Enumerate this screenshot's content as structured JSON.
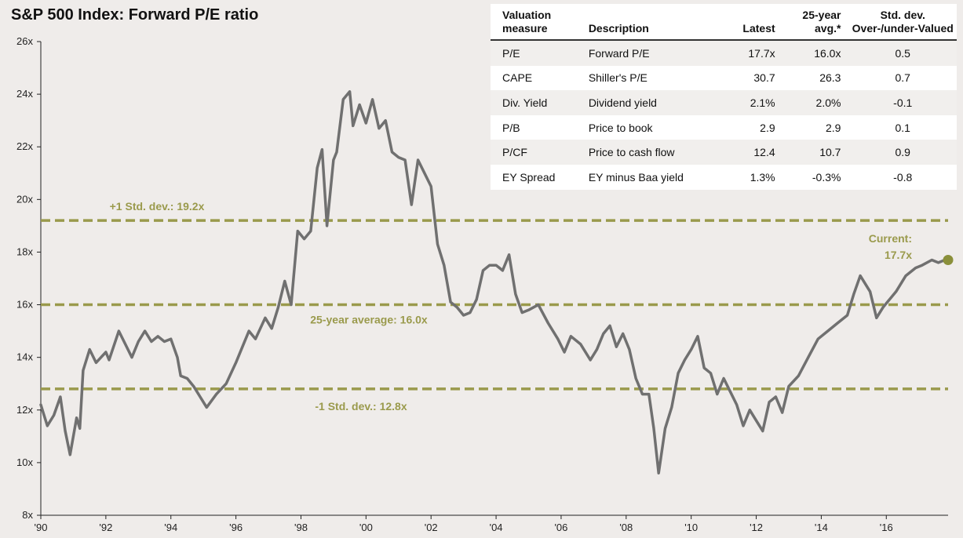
{
  "title": "S&P 500 Index: Forward P/E ratio",
  "colors": {
    "line": "#707070",
    "reference": "#9a9a4c",
    "current_point": "#8a8f3a",
    "background": "#efecea",
    "table_bg": "#ffffff",
    "table_shade": "#f1efed"
  },
  "table": {
    "headers": {
      "measure": "Valuation measure",
      "description": "Description",
      "latest": "Latest",
      "avg": "25-year avg.*",
      "stddev": "Std. dev. Over-/under-Valued"
    },
    "rows": [
      {
        "measure": "P/E",
        "description": "Forward P/E",
        "latest": "17.7x",
        "avg": "16.0x",
        "stddev": "0.5"
      },
      {
        "measure": "CAPE",
        "description": "Shiller's P/E",
        "latest": "30.7",
        "avg": "26.3",
        "stddev": "0.7"
      },
      {
        "measure": "Div. Yield",
        "description": "Dividend yield",
        "latest": "2.1%",
        "avg": "2.0%",
        "stddev": "-0.1"
      },
      {
        "measure": "P/B",
        "description": "Price to book",
        "latest": "2.9",
        "avg": "2.9",
        "stddev": "0.1"
      },
      {
        "measure": "P/CF",
        "description": "Price to cash flow",
        "latest": "12.4",
        "avg": "10.7",
        "stddev": "0.9"
      },
      {
        "measure": "EY Spread",
        "description": "EY minus Baa yield",
        "latest": "1.3%",
        "avg": "-0.3%",
        "stddev": "-0.8"
      }
    ]
  },
  "chart_data": {
    "type": "line",
    "title": "S&P 500 Index: Forward P/E ratio",
    "xlabel": "",
    "ylabel": "",
    "xlim": [
      1990,
      2017.9
    ],
    "ylim": [
      8,
      26
    ],
    "grid": false,
    "y_ticks": [
      8,
      10,
      12,
      14,
      16,
      18,
      20,
      22,
      24,
      26
    ],
    "y_tick_labels": [
      "8x",
      "10x",
      "12x",
      "14x",
      "16x",
      "18x",
      "20x",
      "22x",
      "24x",
      "26x"
    ],
    "x_ticks": [
      1990,
      1992,
      1994,
      1996,
      1998,
      2000,
      2002,
      2004,
      2006,
      2008,
      2010,
      2012,
      2014,
      2016
    ],
    "x_tick_labels": [
      "'90",
      "'92",
      "'94",
      "'96",
      "'98",
      "'00",
      "'02",
      "'04",
      "'06",
      "'08",
      "'10",
      "'12",
      "'14",
      "'16"
    ],
    "series": [
      {
        "x": [
          1990.0,
          1990.2,
          1990.4,
          1990.6,
          1990.75,
          1990.9,
          1991.1,
          1991.2,
          1991.3,
          1991.5,
          1991.7,
          1992.0,
          1992.1,
          1992.4,
          1992.6,
          1992.8,
          1993.0,
          1993.2,
          1993.4,
          1993.6,
          1993.8,
          1994.0,
          1994.2,
          1994.3,
          1994.5,
          1994.7,
          1994.9,
          1995.1,
          1995.4,
          1995.7,
          1996.0,
          1996.2,
          1996.4,
          1996.6,
          1996.9,
          1997.1,
          1997.3,
          1997.5,
          1997.7,
          1997.9,
          1998.1,
          1998.3,
          1998.5,
          1998.65,
          1998.8,
          1999.0,
          1999.1,
          1999.3,
          1999.5,
          1999.6,
          1999.8,
          2000.0,
          2000.2,
          2000.4,
          2000.6,
          2000.8,
          2001.0,
          2001.2,
          2001.4,
          2001.6,
          2001.8,
          2002.0,
          2002.2,
          2002.4,
          2002.6,
          2002.8,
          2003.0,
          2003.2,
          2003.4,
          2003.6,
          2003.8,
          2004.0,
          2004.2,
          2004.4,
          2004.6,
          2004.8,
          2005.0,
          2005.3,
          2005.6,
          2005.9,
          2006.1,
          2006.3,
          2006.6,
          2006.9,
          2007.1,
          2007.3,
          2007.5,
          2007.7,
          2007.9,
          2008.1,
          2008.3,
          2008.5,
          2008.7,
          2008.85,
          2009.0,
          2009.2,
          2009.4,
          2009.6,
          2009.8,
          2010.0,
          2010.2,
          2010.4,
          2010.6,
          2010.8,
          2011.0,
          2011.2,
          2011.4,
          2011.6,
          2011.8,
          2012.0,
          2012.2,
          2012.4,
          2012.6,
          2012.8,
          2013.0,
          2013.3,
          2013.6,
          2013.9,
          2014.2,
          2014.5,
          2014.8,
          2015.0,
          2015.2,
          2015.5,
          2015.7,
          2015.9,
          2016.1,
          2016.3,
          2016.6,
          2016.9,
          2017.1,
          2017.4,
          2017.6,
          2017.8
        ],
        "y": [
          12.2,
          11.4,
          11.8,
          12.5,
          11.2,
          10.3,
          11.7,
          11.3,
          13.5,
          14.3,
          13.8,
          14.2,
          13.9,
          15.0,
          14.5,
          14.0,
          14.6,
          15.0,
          14.6,
          14.8,
          14.6,
          14.7,
          14.0,
          13.3,
          13.2,
          12.9,
          12.5,
          12.1,
          12.6,
          13.0,
          13.8,
          14.4,
          15.0,
          14.7,
          15.5,
          15.1,
          15.9,
          16.9,
          16.0,
          18.8,
          18.5,
          18.8,
          21.2,
          21.9,
          19.0,
          21.5,
          21.8,
          23.8,
          24.1,
          22.8,
          23.6,
          22.9,
          23.8,
          22.7,
          23.0,
          21.8,
          21.6,
          21.5,
          19.8,
          21.5,
          21.0,
          20.5,
          18.3,
          17.5,
          16.1,
          15.9,
          15.6,
          15.7,
          16.2,
          17.3,
          17.5,
          17.5,
          17.3,
          17.9,
          16.4,
          15.7,
          15.8,
          16.0,
          15.3,
          14.7,
          14.2,
          14.8,
          14.5,
          13.9,
          14.3,
          14.9,
          15.2,
          14.4,
          14.9,
          14.3,
          13.2,
          12.6,
          12.6,
          11.3,
          9.6,
          11.3,
          12.1,
          13.4,
          13.9,
          14.3,
          14.8,
          13.6,
          13.4,
          12.6,
          13.2,
          12.7,
          12.2,
          11.4,
          12.0,
          11.6,
          11.2,
          12.3,
          12.5,
          11.9,
          12.9,
          13.3,
          14.0,
          14.7,
          15.0,
          15.3,
          15.6,
          16.4,
          17.1,
          16.5,
          15.5,
          15.9,
          16.2,
          16.5,
          17.1,
          17.4,
          17.5,
          17.7,
          17.6,
          17.7
        ],
        "color": "#707070"
      }
    ],
    "reference_lines": [
      {
        "y": 19.2,
        "label": "+1 Std. dev.: 19.2x"
      },
      {
        "y": 16.0,
        "label": "25-year average: 16.0x"
      },
      {
        "y": 12.8,
        "label": "-1 Std. dev.: 12.8x"
      }
    ],
    "current": {
      "x": 2017.9,
      "y": 17.7,
      "label_line1": "Current:",
      "label_line2": "17.7x"
    }
  }
}
